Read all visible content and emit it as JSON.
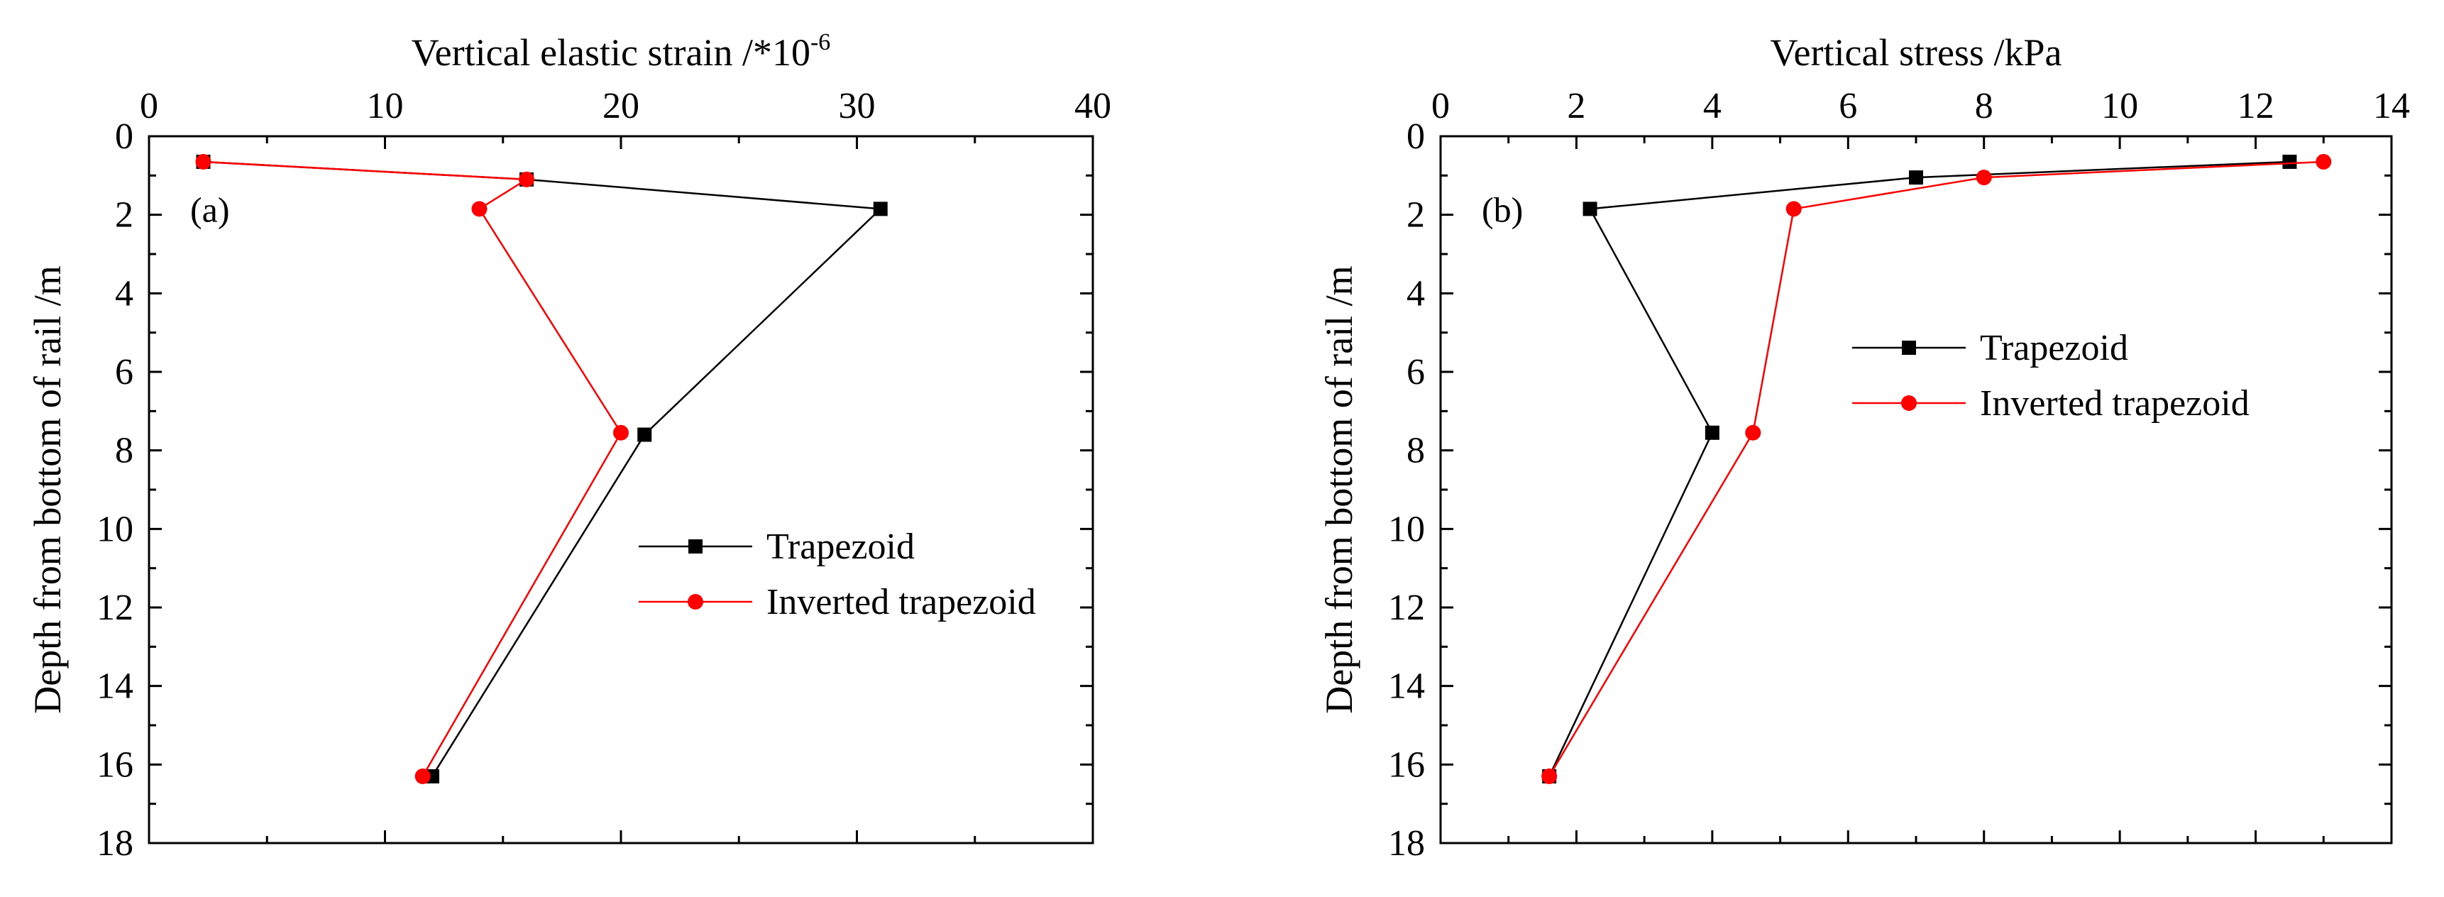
{
  "figure": {
    "panels": [
      "a",
      "b"
    ]
  },
  "chart_data": [
    {
      "type": "line",
      "panel_label": "(a)",
      "xlabel": "Vertical elastic strain /*10",
      "xlabel_superscript": "-6",
      "ylabel": "Depth from bottom of rail /m",
      "xlim": [
        0,
        40
      ],
      "ylim": [
        0,
        18
      ],
      "y_inverted": true,
      "x_axis_position": "top",
      "xticks": [
        0,
        10,
        20,
        30,
        40
      ],
      "yticks": [
        0,
        2,
        4,
        6,
        8,
        10,
        12,
        14,
        16,
        18
      ],
      "legend_position": "lower-right",
      "series": [
        {
          "name": "Trapezoid",
          "color": "#000000",
          "marker": "square",
          "points": [
            [
              2.3,
              0.65
            ],
            [
              16,
              1.1
            ],
            [
              31,
              1.85
            ],
            [
              21,
              7.6
            ],
            [
              12,
              16.3
            ]
          ]
        },
        {
          "name": "Inverted trapezoid",
          "color": "#ff0000",
          "marker": "circle",
          "points": [
            [
              2.3,
              0.65
            ],
            [
              16,
              1.1
            ],
            [
              14,
              1.85
            ],
            [
              20,
              7.55
            ],
            [
              11.6,
              16.3
            ]
          ]
        }
      ]
    },
    {
      "type": "line",
      "panel_label": "(b)",
      "xlabel": "Vertical stress /kPa",
      "xlabel_superscript": "",
      "ylabel": "Depth from bottom of rail /m",
      "xlim": [
        0,
        14
      ],
      "ylim": [
        0,
        18
      ],
      "y_inverted": true,
      "x_axis_position": "top",
      "xticks": [
        0,
        2,
        4,
        6,
        8,
        10,
        12,
        14
      ],
      "yticks": [
        0,
        2,
        4,
        6,
        8,
        10,
        12,
        14,
        16,
        18
      ],
      "legend_position": "upper-right",
      "series": [
        {
          "name": "Trapezoid",
          "color": "#000000",
          "marker": "square",
          "points": [
            [
              12.5,
              0.65
            ],
            [
              7,
              1.05
            ],
            [
              2.2,
              1.85
            ],
            [
              4,
              7.55
            ],
            [
              1.6,
              16.3
            ]
          ]
        },
        {
          "name": "Inverted trapezoid",
          "color": "#ff0000",
          "marker": "circle",
          "points": [
            [
              13,
              0.65
            ],
            [
              8,
              1.05
            ],
            [
              5.2,
              1.85
            ],
            [
              4.6,
              7.55
            ],
            [
              1.6,
              16.3
            ]
          ]
        }
      ]
    }
  ]
}
